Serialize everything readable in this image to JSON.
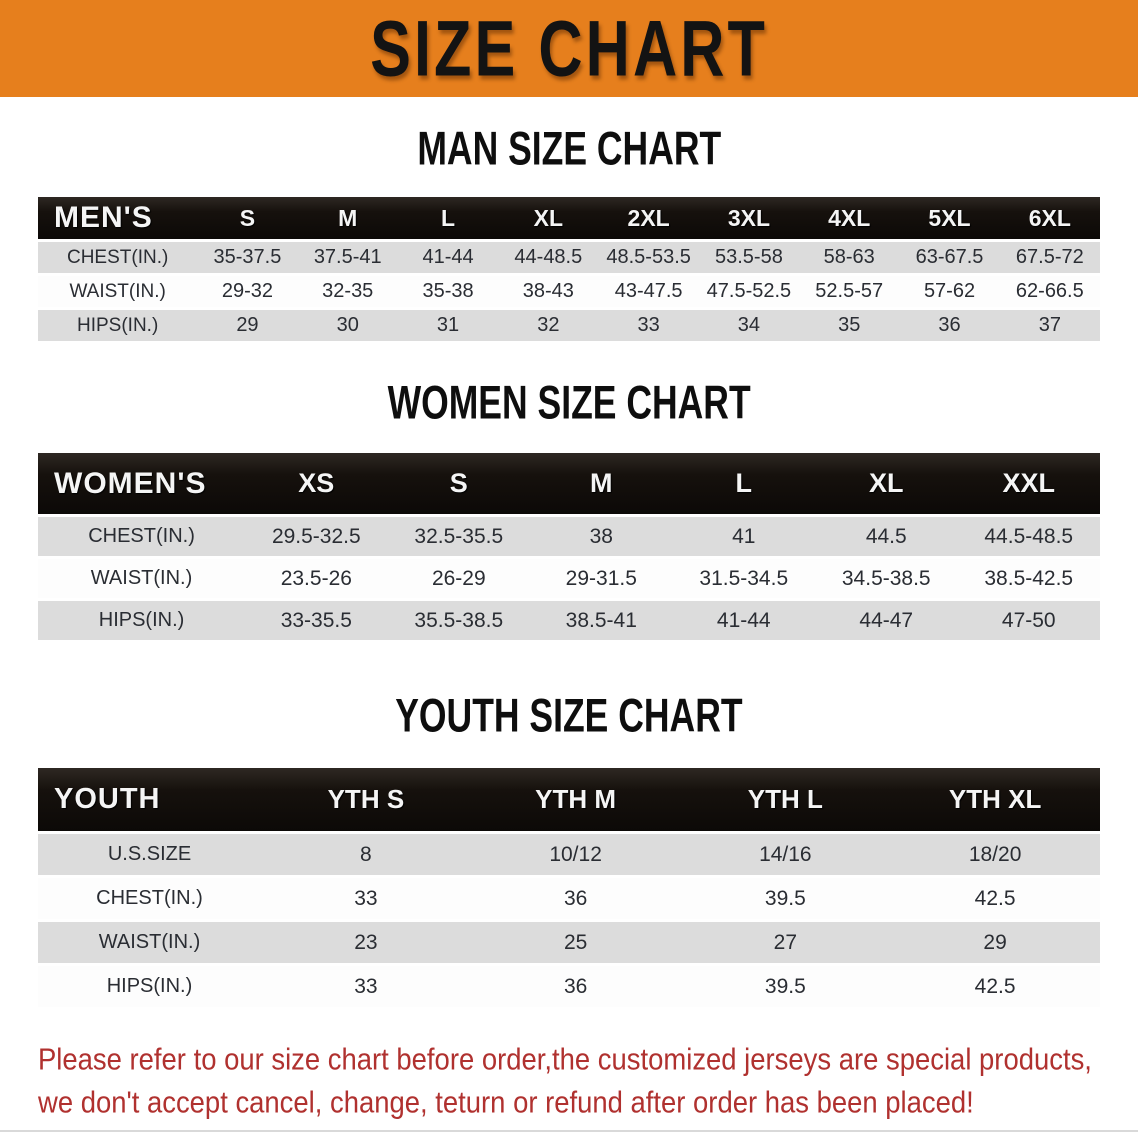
{
  "banner": {
    "title": "SIZE CHART",
    "background_color": "#E67F1D",
    "text_color": "#131313"
  },
  "sections": [
    {
      "heading": "MAN SIZE CHART",
      "table": {
        "header_label": "MEN'S",
        "columns": [
          "S",
          "M",
          "L",
          "XL",
          "2XL",
          "3XL",
          "4XL",
          "5XL",
          "6XL"
        ],
        "rows": [
          {
            "label": "CHEST(IN.)",
            "values": [
              "35-37.5",
              "37.5-41",
              "41-44",
              "44-48.5",
              "48.5-53.5",
              "53.5-58",
              "58-63",
              "63-67.5",
              "67.5-72"
            ]
          },
          {
            "label": "WAIST(IN.)",
            "values": [
              "29-32",
              "32-35",
              "35-38",
              "38-43",
              "43-47.5",
              "47.5-52.5",
              "52.5-57",
              "57-62",
              "62-66.5"
            ]
          },
          {
            "label": "HIPS(IN.)",
            "values": [
              "29",
              "30",
              "31",
              "32",
              "33",
              "34",
              "35",
              "36",
              "37"
            ]
          }
        ]
      }
    },
    {
      "heading": "WOMEN SIZE CHART",
      "table": {
        "header_label": "WOMEN'S",
        "columns": [
          "XS",
          "S",
          "M",
          "L",
          "XL",
          "XXL"
        ],
        "rows": [
          {
            "label": "CHEST(IN.)",
            "values": [
              "29.5-32.5",
              "32.5-35.5",
              "38",
              "41",
              "44.5",
              "44.5-48.5"
            ]
          },
          {
            "label": "WAIST(IN.)",
            "values": [
              "23.5-26",
              "26-29",
              "29-31.5",
              "31.5-34.5",
              "34.5-38.5",
              "38.5-42.5"
            ]
          },
          {
            "label": "HIPS(IN.)",
            "values": [
              "33-35.5",
              "35.5-38.5",
              "38.5-41",
              "41-44",
              "44-47",
              "47-50"
            ]
          }
        ]
      }
    },
    {
      "heading": "YOUTH SIZE CHART",
      "table": {
        "header_label": "YOUTH",
        "columns": [
          "YTH S",
          "YTH M",
          "YTH L",
          "YTH XL"
        ],
        "rows": [
          {
            "label": "U.S.SIZE",
            "values": [
              "8",
              "10/12",
              "14/16",
              "18/20"
            ]
          },
          {
            "label": "CHEST(IN.)",
            "values": [
              "33",
              "36",
              "39.5",
              "42.5"
            ]
          },
          {
            "label": "WAIST(IN.)",
            "values": [
              "23",
              "25",
              "27",
              "29"
            ]
          },
          {
            "label": "HIPS(IN.)",
            "values": [
              "33",
              "36",
              "39.5",
              "42.5"
            ]
          }
        ]
      }
    }
  ],
  "footer": {
    "line1": "Please refer to our size chart before order,the customized jerseys are special products,",
    "line2": "we don't accept cancel, change, teturn or refund after order has been placed!",
    "text_color": "#B0312F"
  },
  "colors": {
    "row_stripe_gray": "#DCDCDC",
    "header_black": "#16110d",
    "banner_orange": "#E67F1D"
  }
}
